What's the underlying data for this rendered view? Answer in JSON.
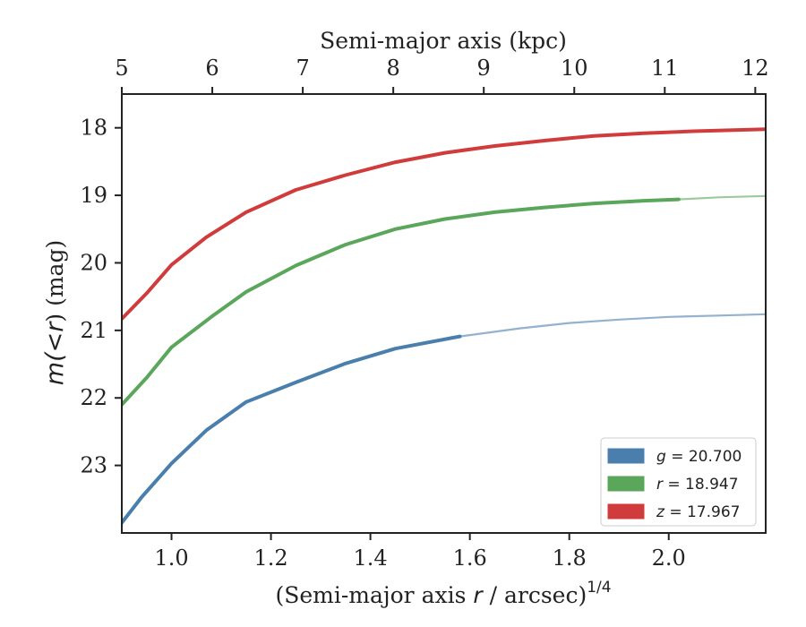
{
  "chart_data": {
    "type": "line",
    "xlabel": "(Semi-major axis r / arcsec)¹ᐟ⁴",
    "xlabel_parts": {
      "before": "(Semi-major axis ",
      "var": "r",
      "after": " / arcsec)",
      "sup": "1/4"
    },
    "ylabel_parts": {
      "m": "m",
      "mid": "(<",
      "r": "r",
      "after": ") (mag)"
    },
    "top_xlabel": "Semi-major axis (kpc)",
    "xlim": [
      0.9,
      2.195
    ],
    "ylim": [
      24.0,
      17.5
    ],
    "y_inverted": true,
    "xticks": [
      1.0,
      1.2,
      1.4,
      1.6,
      1.8,
      2.0
    ],
    "xtick_labels": [
      "1.0",
      "1.2",
      "1.4",
      "1.6",
      "1.8",
      "2.0"
    ],
    "yticks": [
      18,
      19,
      20,
      21,
      22,
      23
    ],
    "ytick_labels": [
      "18",
      "19",
      "20",
      "21",
      "22",
      "23"
    ],
    "top_ticks_kpc": [
      5,
      6,
      7,
      8,
      9,
      10,
      11,
      12
    ],
    "top_tick_labels": [
      "5",
      "6",
      "7",
      "8",
      "9",
      "10",
      "11",
      "12"
    ],
    "top_tick_x": [
      0.9,
      1.082,
      1.264,
      1.446,
      1.628,
      1.81,
      1.992,
      2.174
    ],
    "legend_position": "lower-right",
    "grid": false,
    "series": [
      {
        "name": "g = 20.700",
        "legend_var": "g",
        "legend_value": "20.700",
        "color": "#4a7fad",
        "x": [
          0.9,
          0.94,
          1.0,
          1.07,
          1.15,
          1.25,
          1.35,
          1.45,
          1.58
        ],
        "y": [
          23.85,
          23.47,
          22.97,
          22.48,
          22.06,
          21.77,
          21.49,
          21.27,
          21.09
        ],
        "fade_x": [
          1.58,
          1.7,
          1.8,
          1.9,
          2.0,
          2.1,
          2.195
        ],
        "fade_y": [
          21.09,
          20.97,
          20.89,
          20.84,
          20.8,
          20.78,
          20.76
        ]
      },
      {
        "name": "r = 18.947",
        "legend_var": "r",
        "legend_value": "18.947",
        "color": "#5aa65a",
        "x": [
          0.9,
          0.95,
          1.0,
          1.08,
          1.15,
          1.25,
          1.35,
          1.45,
          1.55,
          1.65,
          1.75,
          1.85,
          1.95,
          2.02
        ],
        "y": [
          22.1,
          21.7,
          21.25,
          20.8,
          20.43,
          20.04,
          19.73,
          19.5,
          19.35,
          19.25,
          19.18,
          19.12,
          19.08,
          19.06
        ],
        "fade_x": [
          2.02,
          2.1,
          2.195
        ],
        "fade_y": [
          19.06,
          19.03,
          19.01
        ]
      },
      {
        "name": "z = 17.967",
        "legend_var": "z",
        "legend_value": "17.967",
        "color": "#d03c3c",
        "x": [
          0.9,
          0.95,
          1.0,
          1.07,
          1.15,
          1.25,
          1.35,
          1.45,
          1.55,
          1.65,
          1.75,
          1.85,
          1.95,
          2.05,
          2.195
        ],
        "y": [
          20.83,
          20.45,
          20.03,
          19.62,
          19.25,
          18.92,
          18.7,
          18.51,
          18.37,
          18.27,
          18.19,
          18.12,
          18.08,
          18.05,
          18.02
        ]
      }
    ]
  }
}
